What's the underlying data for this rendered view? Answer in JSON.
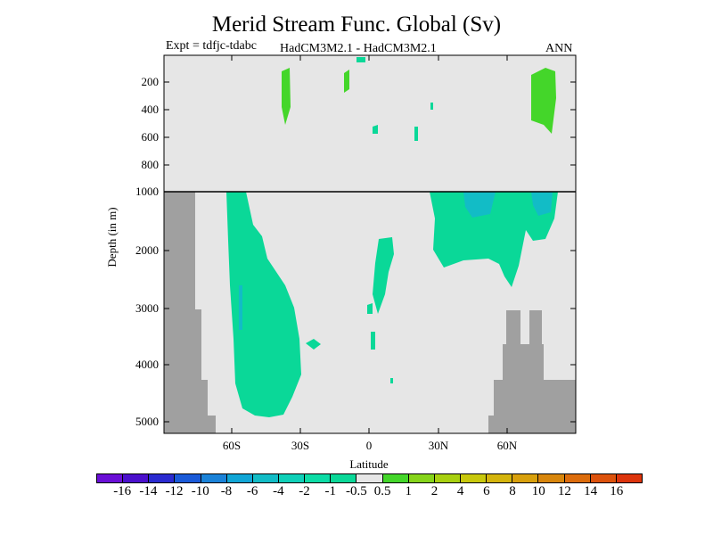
{
  "title": "Merid Stream Func. Global (Sv)",
  "expt": "Expt = tdfjc-tdabc",
  "subtitle": "HadCM3M2.1 - HadCM3M2.1",
  "season": "ANN",
  "ylabel": "Depth (in m)",
  "xlabel": "Latitude",
  "y_ticks": [
    "200",
    "400",
    "600",
    "800",
    "1000",
    "2000",
    "3000",
    "4000",
    "5000"
  ],
  "x_ticks": [
    "60S",
    "30S",
    "0",
    "30N",
    "60N"
  ],
  "colorbar": {
    "colors": [
      "#6a0fd6",
      "#4b10cc",
      "#2a2ad0",
      "#1a5ad8",
      "#1a82d8",
      "#11a6d6",
      "#12bcc6",
      "#0fd0b8",
      "#0cdca6",
      "#0ad898",
      "#e6e6e6",
      "#44d62a",
      "#86d41a",
      "#a8d010",
      "#c8c80c",
      "#d4b40c",
      "#d8a00c",
      "#d8860c",
      "#dc6c0c",
      "#dc520c",
      "#dc340c"
    ],
    "labels": [
      "-16",
      "-14",
      "-12",
      "-10",
      "-8",
      "-6",
      "-4",
      "-2",
      "-1",
      "-0.5",
      "0.5",
      "1",
      "2",
      "4",
      "6",
      "8",
      "10",
      "12",
      "14",
      "16"
    ]
  },
  "colors": {
    "background_field": "#e6e6e6",
    "land_mask": "#a0a0a0",
    "negative_fill": "#0ad898",
    "negative_strong_fill": "#12bcc6",
    "positive_fill": "#44d62a"
  },
  "chart_data": {
    "type": "heatmap",
    "title": "Merid Stream Func. Global (Sv)",
    "xlabel": "Latitude",
    "ylabel": "Depth (in m)",
    "x_ticks": [
      "60S",
      "30S",
      "0",
      "30N",
      "60N"
    ],
    "y_ticks_upper": [
      200,
      400,
      600,
      800,
      1000
    ],
    "y_ticks_lower": [
      1000,
      2000,
      3000,
      4000,
      5000
    ],
    "xlim": [
      -90,
      90
    ],
    "ylim": [
      0,
      5200
    ],
    "levels": [
      -16,
      -14,
      -12,
      -10,
      -8,
      -6,
      -4,
      -2,
      -1,
      -0.5,
      0.5,
      1,
      2,
      4,
      6,
      8,
      10,
      12,
      14,
      16
    ],
    "regions": [
      {
        "sign": "negative",
        "value_range": [
          -1,
          -0.5
        ],
        "lat_range": [
          -62,
          -30
        ],
        "depth_range": [
          1000,
          4900
        ]
      },
      {
        "sign": "negative",
        "value_range": [
          -1,
          -0.5
        ],
        "lat_range": [
          28,
          82
        ],
        "depth_range": [
          1000,
          2700
        ]
      },
      {
        "sign": "negative",
        "value_range": [
          -1,
          -0.5
        ],
        "lat_range": [
          -2,
          10
        ],
        "depth_range": [
          1800,
          3100
        ]
      },
      {
        "sign": "negative",
        "value_range": [
          -2,
          -1
        ],
        "lat_range": [
          45,
          80
        ],
        "depth_range": [
          1000,
          1400
        ]
      },
      {
        "sign": "positive",
        "value_range": [
          0.5,
          1
        ],
        "lat_range": [
          -38,
          -34
        ],
        "depth_range": [
          120,
          560
        ]
      },
      {
        "sign": "positive",
        "value_range": [
          0.5,
          1
        ],
        "lat_range": [
          70,
          82
        ],
        "depth_range": [
          80,
          580
        ]
      },
      {
        "sign": "positive",
        "value_range": [
          0.5,
          1
        ],
        "lat_range": [
          -11,
          -9
        ],
        "depth_range": [
          120,
          280
        ]
      }
    ],
    "land_mask": "bottom topography shown in grey",
    "grid": false,
    "legend": "bottom colorbar"
  }
}
